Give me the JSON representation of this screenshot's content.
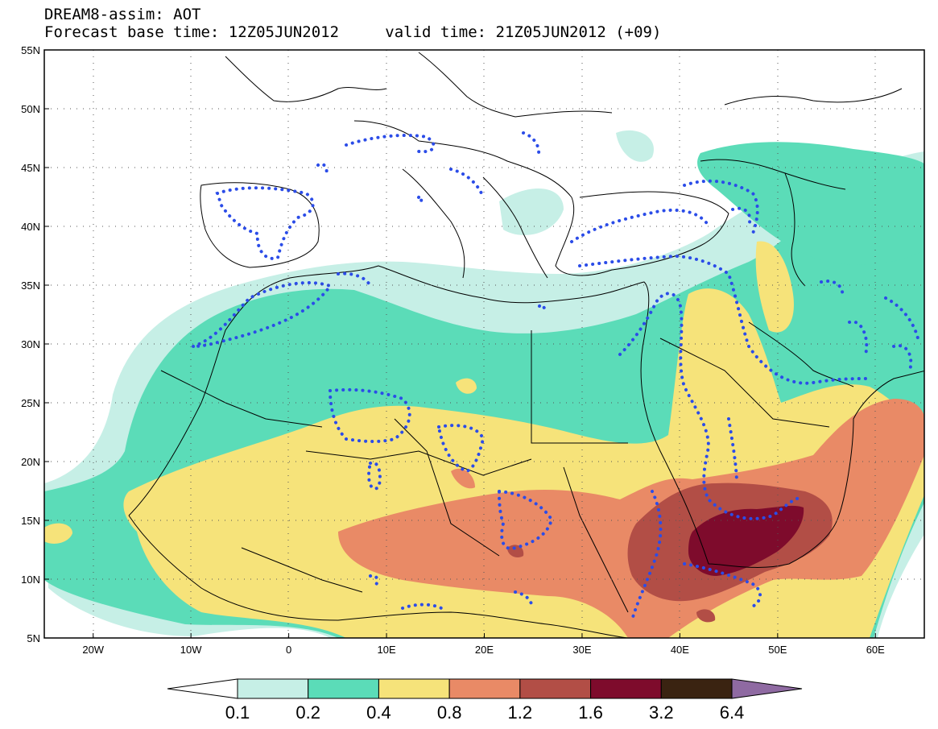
{
  "title": {
    "line1": "DREAM8-assim: AOT",
    "base_label": "Forecast base time: 12Z05JUN2012",
    "valid_label": "valid time: 21Z05JUN2012 (+09)"
  },
  "map": {
    "lon_range": [
      -25,
      65
    ],
    "lat_range": [
      5,
      55
    ],
    "lat_ticks": [
      {
        "v": 55,
        "label": "55N"
      },
      {
        "v": 50,
        "label": "50N"
      },
      {
        "v": 45,
        "label": "45N"
      },
      {
        "v": 40,
        "label": "40N"
      },
      {
        "v": 35,
        "label": "35N"
      },
      {
        "v": 30,
        "label": "30N"
      },
      {
        "v": 25,
        "label": "25N"
      },
      {
        "v": 20,
        "label": "20N"
      },
      {
        "v": 15,
        "label": "15N"
      },
      {
        "v": 10,
        "label": "10N"
      },
      {
        "v": 5,
        "label": "5N"
      }
    ],
    "lon_ticks": [
      {
        "v": -20,
        "label": "20W"
      },
      {
        "v": -10,
        "label": "10W"
      },
      {
        "v": 0,
        "label": "0"
      },
      {
        "v": 10,
        "label": "10E"
      },
      {
        "v": 20,
        "label": "20E"
      },
      {
        "v": 30,
        "label": "30E"
      },
      {
        "v": 40,
        "label": "40E"
      },
      {
        "v": 50,
        "label": "50E"
      },
      {
        "v": 60,
        "label": "60E"
      }
    ]
  },
  "colorbar": {
    "labels": [
      "0.1",
      "0.2",
      "0.4",
      "0.8",
      "1.2",
      "1.6",
      "3.2",
      "6.4"
    ],
    "colors": [
      "#ffffff",
      "#c6efe6",
      "#5bdcb8",
      "#f6e37a",
      "#e98a66",
      "#b24e46",
      "#7e0b2c",
      "#3a2311",
      "#8f6aa2"
    ]
  }
}
